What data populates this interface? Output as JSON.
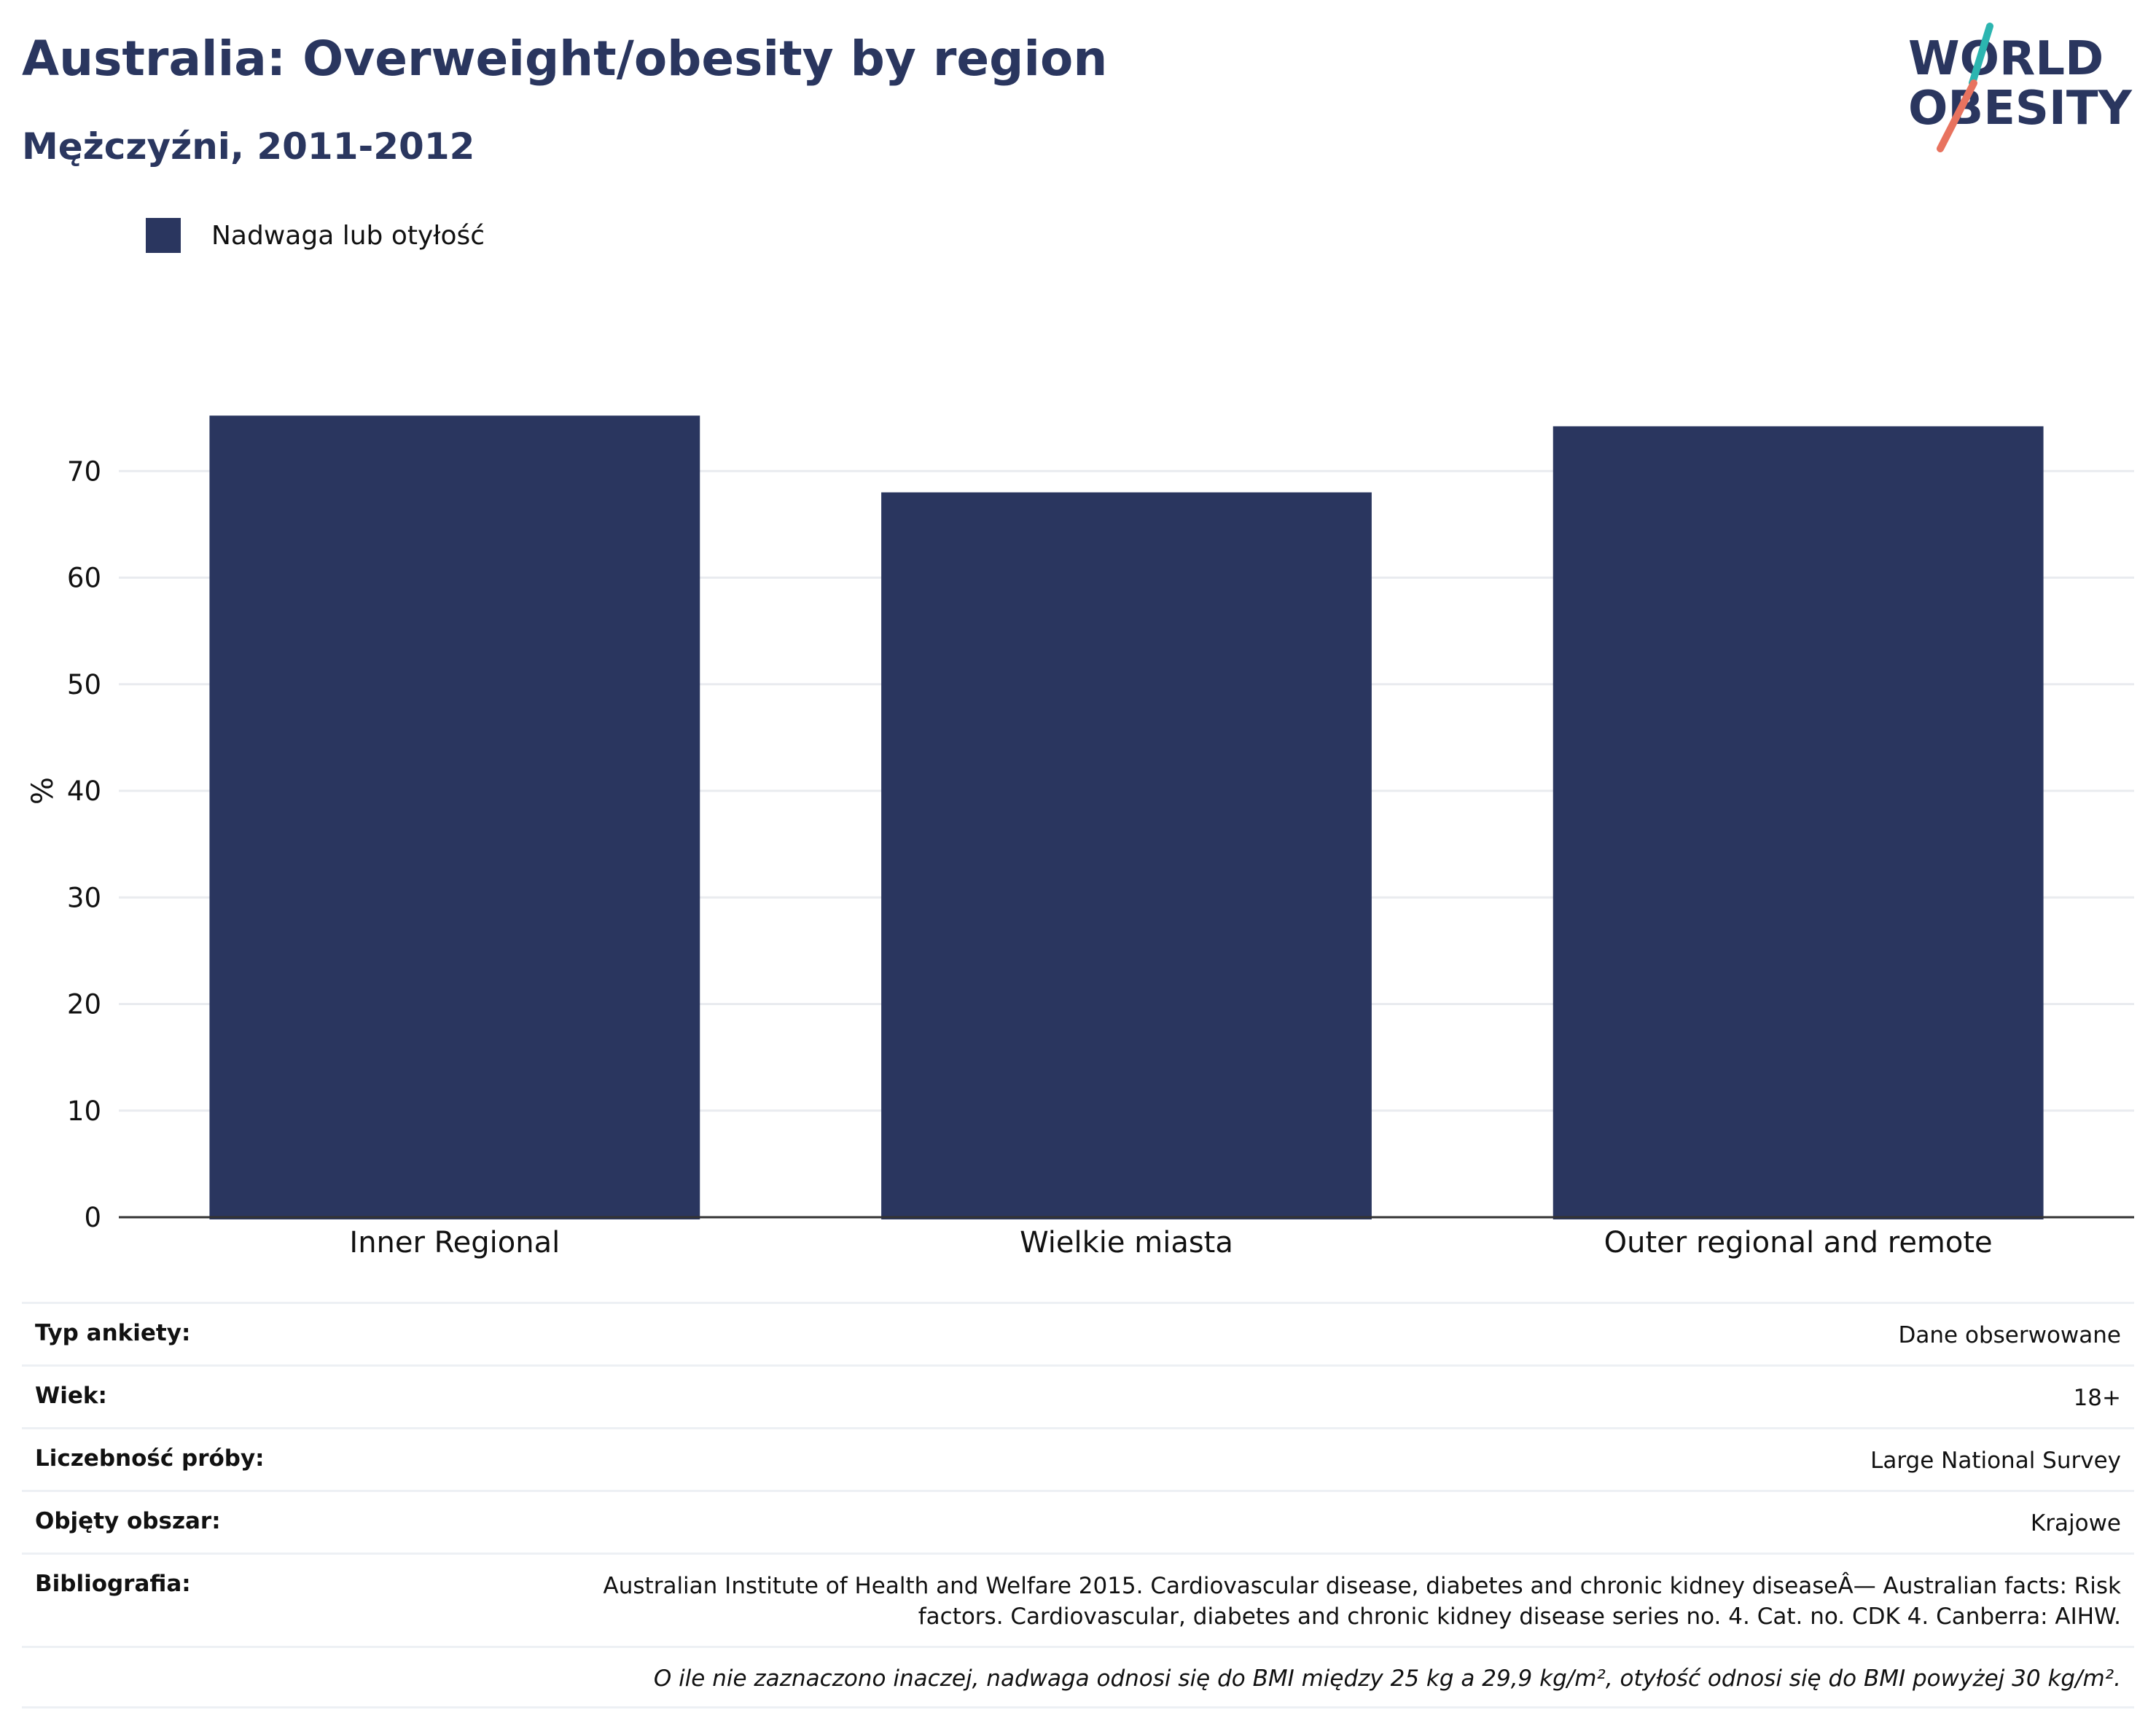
{
  "header": {
    "title": "Australia: Overweight/obesity by region",
    "subtitle": "Mężczyźni, 2011-2012"
  },
  "logo": {
    "line1": "WORLD",
    "line2": "OBESITY"
  },
  "legend": {
    "label": "Nadwaga lub otyłość"
  },
  "colors": {
    "bar": "#2a365f",
    "text": "#2a365f",
    "logo_teal": "#2cb5b0",
    "logo_coral": "#e8735f"
  },
  "chart_data": {
    "type": "bar",
    "categories": [
      "Inner Regional",
      "Wielkie miasta",
      "Outer regional and remote"
    ],
    "series": [
      {
        "name": "Nadwaga lub otyłość",
        "values": [
          75.2,
          68.0,
          74.2
        ]
      }
    ],
    "ylabel": "%",
    "xlabel": "",
    "ylim": [
      0,
      80
    ],
    "yticks": [
      0,
      10,
      20,
      30,
      40,
      50,
      60,
      70
    ],
    "grid": true,
    "legend_position": "top-left"
  },
  "meta": {
    "rows": [
      {
        "label": "Typ ankiety:",
        "value": "Dane obserwowane"
      },
      {
        "label": "Wiek:",
        "value": "18+"
      },
      {
        "label": "Liczebność próby:",
        "value": "Large National Survey"
      },
      {
        "label": "Objęty obszar:",
        "value": "Krajowe"
      }
    ],
    "reference_label": "Bibliografia:",
    "reference_line1": "Australian Institute of Health and Welfare 2015. Cardiovascular disease, diabetes and chronic kidney diseaseÂ— Australian facts: Risk",
    "reference_line2": "factors. Cardiovascular, diabetes and chronic kidney disease series no. 4. Cat. no. CDK 4. Canberra: AIHW.",
    "note": "O ile nie zaznaczono inaczej, nadwaga odnosi się do BMI między 25 kg a 29,9 kg/m², otyłość odnosi się do BMI powyżej 30 kg/m²."
  }
}
